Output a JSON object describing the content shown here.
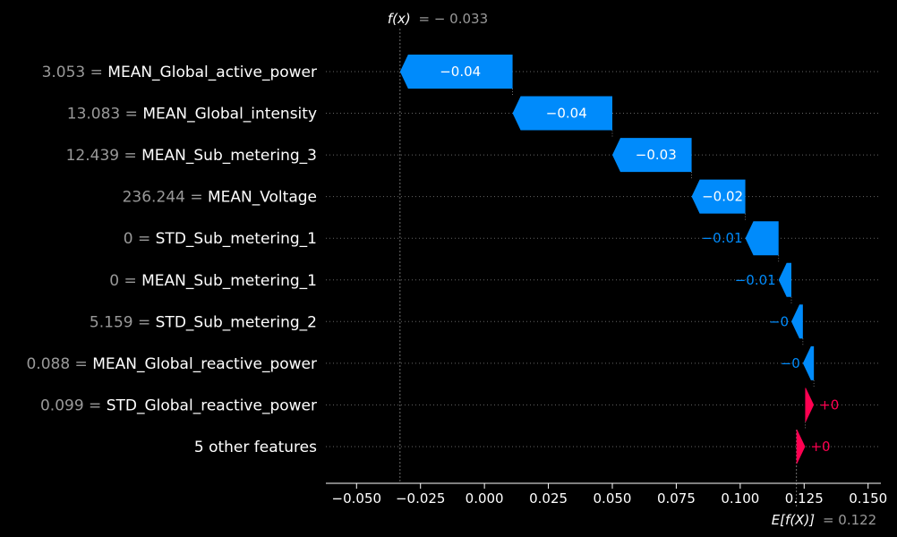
{
  "chart_data": {
    "type": "waterfall",
    "fx_label": "f(x)",
    "fx_value_text": "= − 0.033",
    "fx": -0.033,
    "ex_label": "E[f(X)]",
    "ex_value_text": "= 0.122",
    "ex": 0.122,
    "xlim": [
      -0.062,
      0.155
    ],
    "ticks": [
      {
        "v": -0.05,
        "label": "−0.050"
      },
      {
        "v": -0.025,
        "label": "−0.025"
      },
      {
        "v": 0.0,
        "label": "0.000"
      },
      {
        "v": 0.025,
        "label": "0.025"
      },
      {
        "v": 0.05,
        "label": "0.050"
      },
      {
        "v": 0.075,
        "label": "0.075"
      },
      {
        "v": 0.1,
        "label": "0.100"
      },
      {
        "v": 0.125,
        "label": "0.125"
      },
      {
        "v": 0.15,
        "label": "0.150"
      }
    ],
    "colors": {
      "negative": "#008bfb",
      "positive": "#ff0051",
      "background": "#000000"
    },
    "features": [
      {
        "value": "3.053",
        "name": "MEAN_Global_active_power",
        "start": 0.011,
        "end": -0.033,
        "label": "−0.04"
      },
      {
        "value": "13.083",
        "name": "MEAN_Global_intensity",
        "start": 0.05,
        "end": 0.011,
        "label": "−0.04"
      },
      {
        "value": "12.439",
        "name": "MEAN_Sub_metering_3",
        "start": 0.081,
        "end": 0.05,
        "label": "−0.03"
      },
      {
        "value": "236.244",
        "name": "MEAN_Voltage",
        "start": 0.102,
        "end": 0.081,
        "label": "−0.02"
      },
      {
        "value": "0",
        "name": "STD_Sub_metering_1",
        "start": 0.115,
        "end": 0.102,
        "label": "−0.01"
      },
      {
        "value": "0",
        "name": "MEAN_Sub_metering_1",
        "start": 0.12,
        "end": 0.115,
        "label": "−0.01"
      },
      {
        "value": "5.159",
        "name": "STD_Sub_metering_2",
        "start": 0.1245,
        "end": 0.12,
        "label": "−0"
      },
      {
        "value": "0.088",
        "name": "MEAN_Global_reactive_power",
        "start": 0.1288,
        "end": 0.1245,
        "label": "−0"
      },
      {
        "value": "0.099",
        "name": "STD_Global_reactive_power",
        "start": 0.1254,
        "end": 0.1288,
        "label": "+0"
      },
      {
        "value": "",
        "name": "5 other features",
        "start": 0.122,
        "end": 0.1254,
        "label": "+0"
      }
    ]
  }
}
